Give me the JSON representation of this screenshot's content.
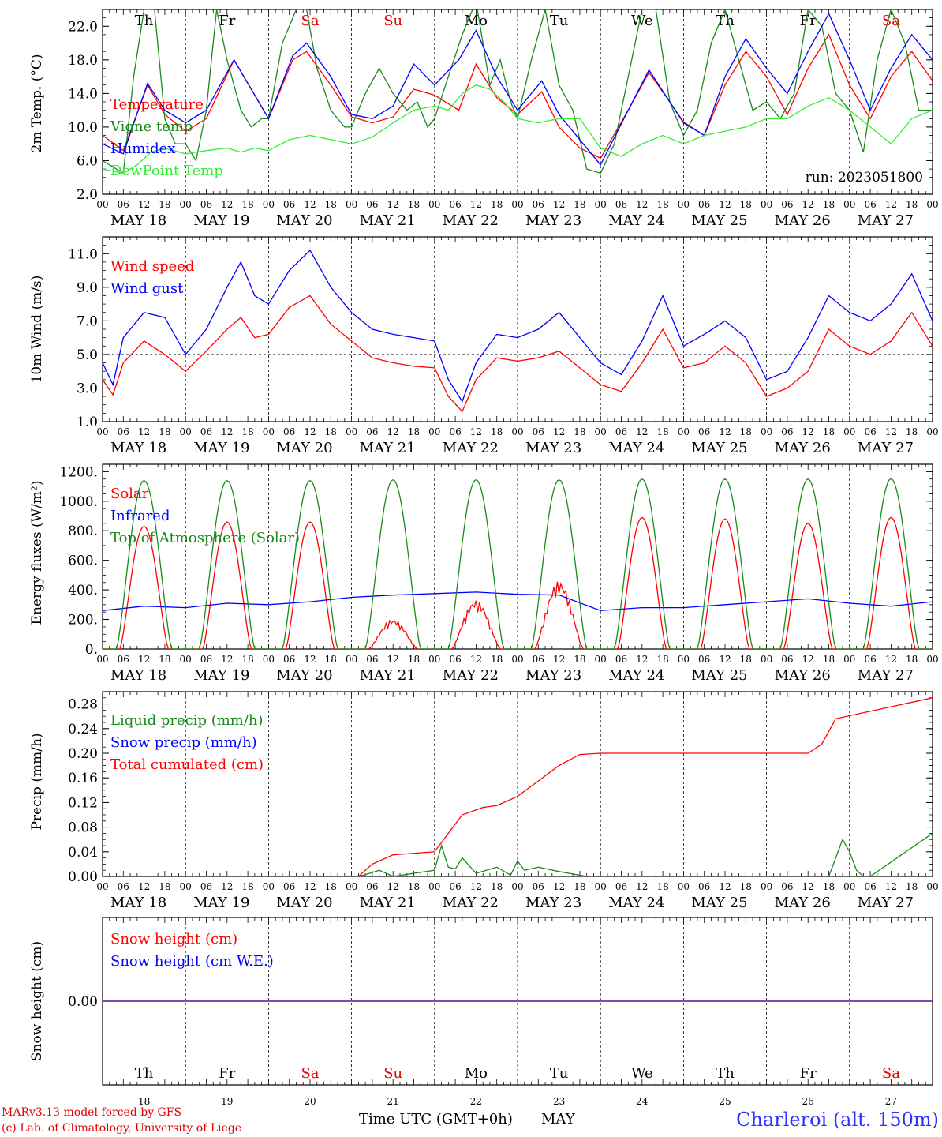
{
  "page": {
    "station": "Charleroi (alt. 150m)",
    "credits": [
      "MARv3.13 model forced by GFS",
      "(c) Lab. of Climatology, University of Liege"
    ],
    "x_axis_title": "Time UTC (GMT+0h)",
    "x_axis_month": "MAY",
    "run_label": "run: 2023051800"
  },
  "days": {
    "names": [
      "Th",
      "Fr",
      "Sa",
      "Su",
      "Mo",
      "Tu",
      "We",
      "Th",
      "Fr",
      "Sa"
    ],
    "dates": [
      "MAY 18",
      "MAY 19",
      "MAY 20",
      "MAY 21",
      "MAY 22",
      "MAY 23",
      "MAY 24",
      "MAY 25",
      "MAY 26",
      "MAY 27"
    ],
    "numbers": [
      "18",
      "19",
      "20",
      "21",
      "22",
      "23",
      "24",
      "25",
      "26",
      "27"
    ],
    "hour_ticks": [
      "00",
      "06",
      "12",
      "18"
    ],
    "final_tick": "00",
    "weekend_color": "#e00000",
    "weekday_color": "#000000"
  },
  "colors": {
    "red": "#ff0000",
    "green": "#1a8a1a",
    "blue": "#0000ff",
    "lightgreen": "#33ee33",
    "purple": "#7030a0"
  },
  "chart_data": [
    {
      "id": "temperature",
      "type": "line",
      "ylabel": "2m Temp. (°C)",
      "ylim": [
        2.0,
        24.0
      ],
      "yticks": [
        2.0,
        6.0,
        10.0,
        14.0,
        18.0,
        22.0
      ],
      "ytick_labels": [
        "2.0",
        "6.0",
        "10.0",
        "14.0",
        "18.0",
        "22.0"
      ],
      "x_unit": "hours since MAY 18 00 UTC",
      "series": [
        {
          "name": "Temperature",
          "color": "#ff0000",
          "x": [
            0,
            6,
            13,
            18,
            24,
            30,
            38,
            48,
            55,
            59,
            66,
            72,
            78,
            84,
            90,
            96,
            103,
            108,
            114,
            120,
            127,
            132,
            138,
            144,
            152,
            158,
            164,
            168,
            174,
            180,
            186,
            192,
            198,
            204,
            210,
            216,
            222,
            228,
            234,
            240
          ],
          "y": [
            9,
            7.2,
            15,
            11.5,
            9.5,
            11,
            18,
            11,
            18,
            19,
            15,
            11.2,
            10.5,
            11.2,
            14.5,
            13.8,
            12,
            17.5,
            13.5,
            11.5,
            14.2,
            10,
            7.5,
            6.3,
            12,
            16.5,
            13,
            10.6,
            9,
            15,
            19,
            16,
            11.5,
            17,
            21,
            15,
            11,
            16,
            19,
            15.5
          ]
        },
        {
          "name": "Vigne temp",
          "color": "#1a8a1a",
          "x": [
            0,
            6,
            9,
            12,
            15,
            18,
            21,
            24,
            27,
            30,
            33,
            36,
            40,
            43,
            46,
            48,
            52,
            56,
            59,
            62,
            66,
            70,
            72,
            76,
            80,
            84,
            88,
            91,
            94,
            96,
            100,
            104,
            108,
            112,
            115,
            118,
            120,
            124,
            128,
            132,
            136,
            140,
            144,
            148,
            152,
            156,
            160,
            164,
            168,
            172,
            176,
            180,
            184,
            188,
            192,
            196,
            200,
            204,
            208,
            212,
            216,
            220,
            224,
            228,
            232,
            236,
            240
          ],
          "y": [
            6,
            4.5,
            16,
            24,
            24,
            11,
            8,
            8,
            6,
            12,
            24,
            18,
            12,
            10,
            11,
            11,
            20,
            24,
            24,
            17,
            12,
            10,
            10,
            14,
            17,
            14,
            12,
            13,
            10,
            11,
            16,
            21,
            25,
            15,
            18,
            13,
            11,
            18,
            24,
            15,
            12,
            5,
            4.5,
            8,
            16,
            24,
            24,
            13,
            9,
            12,
            20,
            24,
            18,
            12,
            13,
            11,
            14,
            24,
            22,
            14,
            12,
            7,
            18,
            24,
            20,
            12,
            12
          ]
        },
        {
          "name": "Humidex",
          "color": "#0000ff",
          "x": [
            0,
            6,
            13,
            18,
            24,
            30,
            38,
            48,
            55,
            59,
            66,
            72,
            78,
            84,
            90,
            96,
            103,
            108,
            114,
            120,
            127,
            132,
            138,
            144,
            152,
            158,
            164,
            168,
            174,
            180,
            186,
            192,
            198,
            204,
            210,
            216,
            222,
            228,
            234,
            240
          ],
          "y": [
            8,
            6.8,
            15.2,
            12,
            10.5,
            12,
            18,
            11,
            18.5,
            20,
            16,
            11.5,
            11,
            12.5,
            17.5,
            15,
            18,
            21.5,
            16,
            12,
            15.5,
            11.5,
            8.5,
            5.5,
            12,
            16.8,
            13,
            10.5,
            9,
            16,
            20.5,
            17,
            14,
            19,
            23.5,
            18,
            12,
            17,
            21,
            18
          ]
        },
        {
          "name": "DewPoint Temp",
          "color": "#33ee33",
          "x": [
            0,
            6,
            10,
            14,
            18,
            24,
            30,
            36,
            40,
            44,
            48,
            54,
            60,
            66,
            72,
            78,
            84,
            90,
            96,
            100,
            104,
            108,
            112,
            116,
            120,
            126,
            132,
            138,
            144,
            150,
            156,
            162,
            168,
            174,
            180,
            186,
            192,
            198,
            204,
            210,
            216,
            222,
            228,
            234,
            240
          ],
          "y": [
            5,
            4.5,
            5.5,
            7,
            7.5,
            6.8,
            7.2,
            7.5,
            7,
            7.5,
            7.2,
            8.5,
            9,
            8.5,
            8,
            8.8,
            10.5,
            12,
            12.5,
            12,
            14,
            15,
            14.5,
            13,
            11,
            10.5,
            11,
            11,
            7.5,
            6.5,
            8,
            9,
            8,
            9,
            9.5,
            10,
            11,
            11,
            12.5,
            13.5,
            12,
            10,
            8,
            11,
            12
          ]
        }
      ]
    },
    {
      "id": "wind",
      "type": "line",
      "ylabel": "10m Wind (m/s)",
      "ylim": [
        1.0,
        12.0
      ],
      "yticks": [
        1.0,
        3.0,
        5.0,
        7.0,
        9.0,
        11.0
      ],
      "ytick_labels": [
        "1.0",
        "3.0",
        "5.0",
        "7.0",
        "9.0",
        "11.0"
      ],
      "reference_line": 5.0,
      "series": [
        {
          "name": "Wind speed",
          "color": "#ff0000",
          "x": [
            0,
            3,
            6,
            12,
            18,
            24,
            30,
            36,
            40,
            44,
            48,
            54,
            60,
            66,
            72,
            78,
            84,
            90,
            96,
            100,
            104,
            108,
            114,
            120,
            126,
            132,
            138,
            144,
            150,
            156,
            162,
            168,
            174,
            180,
            186,
            192,
            198,
            204,
            210,
            216,
            222,
            228,
            234,
            240
          ],
          "y": [
            3.5,
            2.6,
            4.5,
            5.8,
            5,
            4,
            5.2,
            6.5,
            7.2,
            6,
            6.2,
            7.8,
            8.5,
            6.8,
            5.8,
            4.8,
            4.5,
            4.3,
            4.2,
            2.5,
            1.6,
            3.5,
            4.8,
            4.6,
            4.8,
            5.2,
            4.2,
            3.2,
            2.8,
            4.5,
            6.5,
            4.2,
            4.5,
            5.5,
            4.5,
            2.5,
            3,
            4,
            6.5,
            5.5,
            5,
            5.8,
            7.5,
            5.5
          ]
        },
        {
          "name": "Wind gust",
          "color": "#0000ff",
          "x": [
            0,
            3,
            6,
            12,
            18,
            24,
            30,
            36,
            40,
            44,
            48,
            54,
            60,
            66,
            72,
            78,
            84,
            90,
            96,
            100,
            104,
            108,
            114,
            120,
            126,
            132,
            138,
            144,
            150,
            156,
            162,
            168,
            174,
            180,
            186,
            192,
            198,
            204,
            210,
            216,
            222,
            228,
            234,
            240
          ],
          "y": [
            4.5,
            3.2,
            6,
            7.5,
            7.2,
            5,
            6.5,
            9,
            10.5,
            8.5,
            8,
            10,
            11.2,
            9,
            7.5,
            6.5,
            6.2,
            6,
            5.8,
            3.5,
            2.2,
            4.5,
            6.2,
            6,
            6.5,
            7.5,
            6,
            4.5,
            3.8,
            5.8,
            8.5,
            5.5,
            6.2,
            7,
            6,
            3.5,
            4,
            6,
            8.5,
            7.5,
            7,
            8,
            9.8,
            7
          ]
        }
      ]
    },
    {
      "id": "fluxes",
      "type": "line",
      "ylabel": "Energy fluxes (W/m²)",
      "ylim": [
        0,
        1250
      ],
      "yticks": [
        0,
        200,
        400,
        600,
        800,
        1000,
        1200
      ],
      "ytick_labels": [
        "0.",
        "200.",
        "400.",
        "600.",
        "800.",
        "1000.",
        "1200."
      ],
      "series": [
        {
          "name": "Solar",
          "color": "#ff0000",
          "daily_peak": [
            830,
            860,
            860,
            200,
            330,
            460,
            890,
            880,
            850,
            890
          ]
        },
        {
          "name": "Infrared",
          "color": "#0000ff",
          "x": [
            0,
            12,
            24,
            36,
            48,
            60,
            72,
            84,
            96,
            108,
            120,
            132,
            144,
            156,
            168,
            180,
            192,
            204,
            216,
            228,
            240
          ],
          "y": [
            260,
            290,
            280,
            310,
            300,
            320,
            350,
            365,
            375,
            385,
            370,
            365,
            260,
            280,
            280,
            300,
            320,
            340,
            310,
            290,
            320
          ]
        },
        {
          "name": "Top of Atmosphere (Solar)",
          "color": "#1a8a1a",
          "daily_peak": [
            1140,
            1140,
            1140,
            1145,
            1145,
            1145,
            1150,
            1150,
            1150,
            1152
          ]
        }
      ]
    },
    {
      "id": "precip",
      "type": "line",
      "ylabel": "Precip (mm/h)",
      "ylim": [
        0,
        0.3
      ],
      "yticks": [
        0,
        0.04,
        0.08,
        0.12,
        0.16,
        0.2,
        0.24,
        0.28
      ],
      "ytick_labels": [
        "0.00",
        "0.04",
        "0.08",
        "0.12",
        "0.16",
        "0.20",
        "0.24",
        "0.28"
      ],
      "series": [
        {
          "name": "Liquid precip (mm/h)",
          "color": "#1a8a1a",
          "x": [
            0,
            74,
            76,
            80,
            84,
            96,
            98,
            100,
            102,
            104,
            108,
            114,
            118,
            120,
            122,
            126,
            132,
            140,
            144,
            210,
            212,
            214,
            216,
            218,
            220,
            222,
            240
          ],
          "y": [
            0,
            0,
            0.003,
            0.01,
            0,
            0.01,
            0.05,
            0.015,
            0.012,
            0.03,
            0.005,
            0.015,
            0.002,
            0.025,
            0.01,
            0.015,
            0.008,
            0,
            0,
            0,
            0.03,
            0.06,
            0.04,
            0.01,
            0,
            0,
            0.07
          ]
        },
        {
          "name": "Snow precip (mm/h)",
          "color": "#0000ff",
          "x": [
            0,
            240
          ],
          "y": [
            0,
            0
          ]
        },
        {
          "name": "Total cumulated (cm)",
          "color": "#ff0000",
          "x": [
            0,
            74,
            78,
            84,
            96,
            100,
            104,
            110,
            114,
            120,
            126,
            132,
            138,
            144,
            204,
            208,
            212,
            240
          ],
          "y": [
            0,
            0,
            0.02,
            0.035,
            0.04,
            0.07,
            0.1,
            0.112,
            0.115,
            0.13,
            0.155,
            0.18,
            0.198,
            0.2,
            0.2,
            0.215,
            0.256,
            0.29
          ]
        }
      ]
    },
    {
      "id": "snow",
      "type": "line",
      "ylabel": "Snow height (cm)",
      "ylim": [
        -1,
        1
      ],
      "yticks": [
        0
      ],
      "ytick_labels": [
        "0.00"
      ],
      "series": [
        {
          "name": "Snow height (cm)",
          "color": "#ff0000",
          "x": [
            0,
            240
          ],
          "y": [
            0,
            0
          ]
        },
        {
          "name": "Snow height (cm W.E.)",
          "color": "#0000ff",
          "x": [
            0,
            240
          ],
          "y": [
            0,
            0
          ]
        }
      ]
    }
  ]
}
